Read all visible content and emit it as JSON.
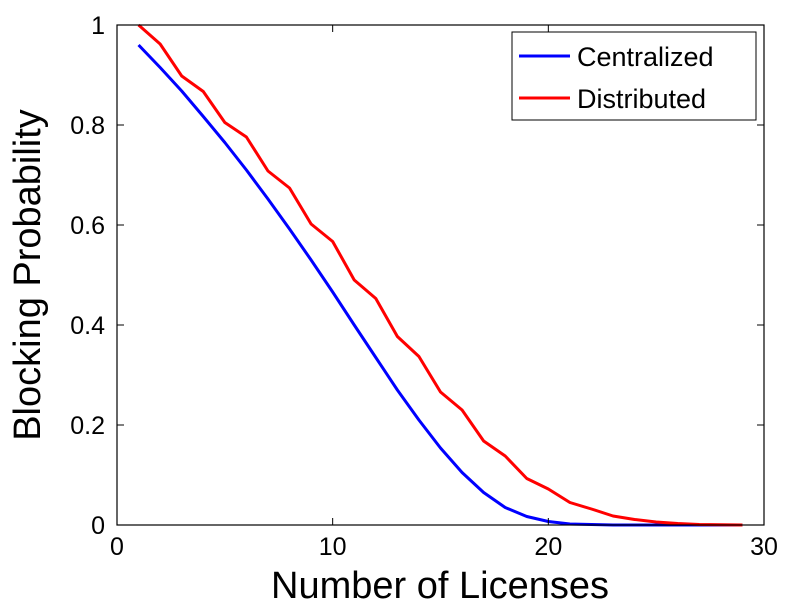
{
  "chart_data": {
    "type": "line",
    "xlabel": "Number of Licenses",
    "ylabel": "Blocking Probability",
    "xlim": [
      0,
      30
    ],
    "ylim": [
      0,
      1
    ],
    "xticks": [
      "0",
      "10",
      "20",
      "30"
    ],
    "yticks": [
      "0",
      "0.2",
      "0.4",
      "0.6",
      "0.8",
      "1"
    ],
    "grid": false,
    "legend_position": "top-right",
    "x": [
      1,
      2,
      3,
      4,
      5,
      6,
      7,
      8,
      9,
      10,
      11,
      12,
      13,
      14,
      15,
      16,
      17,
      18,
      19,
      20,
      21,
      22,
      23,
      24,
      25,
      26,
      27,
      28,
      29
    ],
    "series": [
      {
        "name": "Centralized",
        "color": "#0000ff",
        "values": [
          0.96,
          0.915,
          0.868,
          0.817,
          0.765,
          0.71,
          0.652,
          0.592,
          0.53,
          0.466,
          0.4,
          0.335,
          0.27,
          0.21,
          0.154,
          0.105,
          0.065,
          0.035,
          0.017,
          0.007,
          0.002,
          0.001,
          0,
          0,
          0,
          0,
          0,
          0,
          0
        ]
      },
      {
        "name": "Distributed",
        "color": "#ff0000",
        "values": [
          1.0,
          0.962,
          0.898,
          0.867,
          0.805,
          0.776,
          0.708,
          0.674,
          0.602,
          0.567,
          0.49,
          0.453,
          0.377,
          0.337,
          0.266,
          0.23,
          0.168,
          0.138,
          0.093,
          0.072,
          0.045,
          0.032,
          0.018,
          0.011,
          0.006,
          0.003,
          0.001,
          0.0005,
          0
        ]
      }
    ]
  }
}
